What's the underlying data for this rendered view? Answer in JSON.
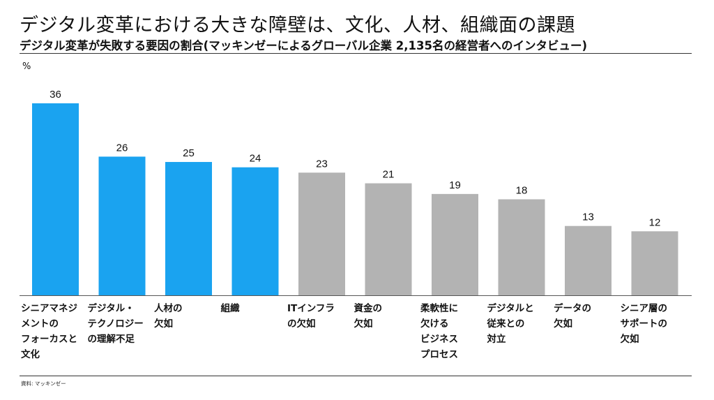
{
  "header": {
    "title": "デジタル変革における大きな障壁は、文化、人材、組織面の課題",
    "subtitle": "デジタル変革が失敗する要因の割合(マッキンゼーによるグローバル企業 2,135名の経営者へのインタビュー)"
  },
  "footer": {
    "source": "資料: マッキンゼー"
  },
  "colors": {
    "highlight": "#1aa3f0",
    "normal": "#b3b3b3",
    "axis": "#555555"
  },
  "chart_data": {
    "type": "bar",
    "ylabel": "%",
    "ylim": [
      0,
      36
    ],
    "grid": false,
    "categories": [
      "シニアマネジ\nメントの\nフォーカスと\n文化",
      "デジタル・\nテクノロジー\nの理解不足",
      "人材の\n欠如",
      "組織",
      "ITインフラ\nの欠如",
      "資金の\n欠如",
      "柔軟性に\n欠ける\nビジネス\nプロセス",
      "デジタルと\n従来との\n対立",
      "データの\n欠如",
      "シニア層の\nサポートの\n欠如"
    ],
    "values": [
      36,
      26,
      25,
      24,
      23,
      21,
      19,
      18,
      13,
      12
    ],
    "highlighted": [
      true,
      true,
      true,
      true,
      false,
      false,
      false,
      false,
      false,
      false
    ]
  }
}
